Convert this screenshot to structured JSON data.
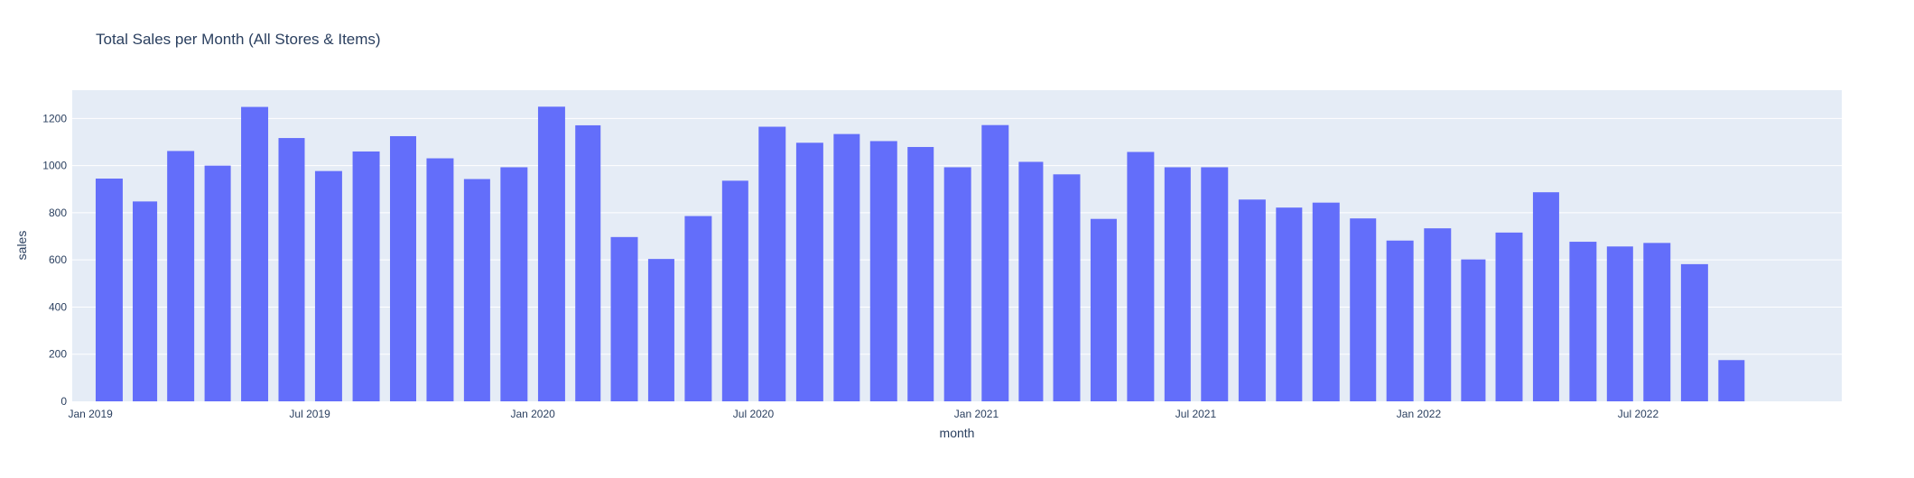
{
  "chart_data": {
    "type": "bar",
    "title": "Total Sales per Month (All Stores & Items)",
    "xlabel": "month",
    "ylabel": "sales",
    "ylim": [
      0,
      1320
    ],
    "yticks": [
      0,
      200,
      400,
      600,
      800,
      1000,
      1200
    ],
    "xlim": [
      "2018-12-17",
      "2022-12-16"
    ],
    "xticks": [
      {
        "date": "2019-01-01",
        "label": "Jan 2019"
      },
      {
        "date": "2019-07-01",
        "label": "Jul 2019"
      },
      {
        "date": "2020-01-01",
        "label": "Jan 2020"
      },
      {
        "date": "2020-07-01",
        "label": "Jul 2020"
      },
      {
        "date": "2021-01-01",
        "label": "Jan 2021"
      },
      {
        "date": "2021-07-01",
        "label": "Jul 2021"
      },
      {
        "date": "2022-01-01",
        "label": "Jan 2022"
      },
      {
        "date": "2022-07-01",
        "label": "Jul 2022"
      }
    ],
    "grid": true,
    "bar_color": "#636efa",
    "plot_bg": "#e5ecf6",
    "series": [
      {
        "x": [
          "2019-01",
          "2019-02",
          "2019-03",
          "2019-04",
          "2019-05",
          "2019-06",
          "2019-07",
          "2019-08",
          "2019-09",
          "2019-10",
          "2019-11",
          "2019-12",
          "2020-01",
          "2020-02",
          "2020-03",
          "2020-04",
          "2020-05",
          "2020-06",
          "2020-07",
          "2020-08",
          "2020-09",
          "2020-10",
          "2020-11",
          "2020-12",
          "2021-01",
          "2021-02",
          "2021-03",
          "2021-04",
          "2021-05",
          "2021-06",
          "2021-07",
          "2021-08",
          "2021-09",
          "2021-10",
          "2021-11",
          "2021-12",
          "2022-01",
          "2022-02",
          "2022-03",
          "2022-04",
          "2022-05",
          "2022-06",
          "2022-07",
          "2022-08",
          "2022-09"
        ],
        "values": [
          945,
          848,
          1062,
          1000,
          1249,
          1117,
          977,
          1060,
          1125,
          1031,
          943,
          993,
          1250,
          1171,
          697,
          604,
          786,
          936,
          1165,
          1097,
          1134,
          1104,
          1079,
          993,
          1172,
          1016,
          963,
          774,
          1058,
          993,
          993,
          856,
          822,
          843,
          776,
          682,
          734,
          602,
          716,
          887,
          677,
          657,
          672,
          582,
          175
        ]
      }
    ]
  }
}
